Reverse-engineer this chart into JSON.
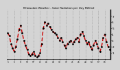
{
  "title": "Milwaukee Weather - Solar Radiation per Day KW/m2",
  "background_color": "#d4d4d4",
  "plot_bg_color": "#d4d4d4",
  "line_color": "#cc0000",
  "dot_color": "#000000",
  "grid_color": "#888888",
  "y_min": 0,
  "y_max": 8,
  "y_ticks": [
    1,
    2,
    3,
    4,
    5,
    6,
    7
  ],
  "values": [
    4.2,
    3.8,
    2.5,
    1.8,
    1.2,
    2.0,
    3.2,
    4.8,
    5.5,
    4.2,
    3.0,
    2.2,
    1.5,
    0.8,
    0.5,
    0.8,
    1.2,
    0.6,
    0.3,
    0.5,
    1.0,
    2.5,
    5.0,
    6.0,
    5.5,
    5.8,
    5.2,
    4.8,
    4.5,
    4.2,
    4.0,
    3.5,
    3.0,
    3.5,
    2.8,
    2.2,
    1.8,
    2.5,
    2.8,
    3.0,
    2.5,
    2.8,
    3.2,
    3.5,
    2.8,
    4.0,
    4.5,
    3.8,
    3.0,
    2.5,
    2.8,
    2.0,
    1.5,
    2.2,
    3.0,
    2.5,
    1.8,
    1.2,
    2.0,
    3.5,
    4.0,
    2.8,
    2.0,
    1.5
  ]
}
